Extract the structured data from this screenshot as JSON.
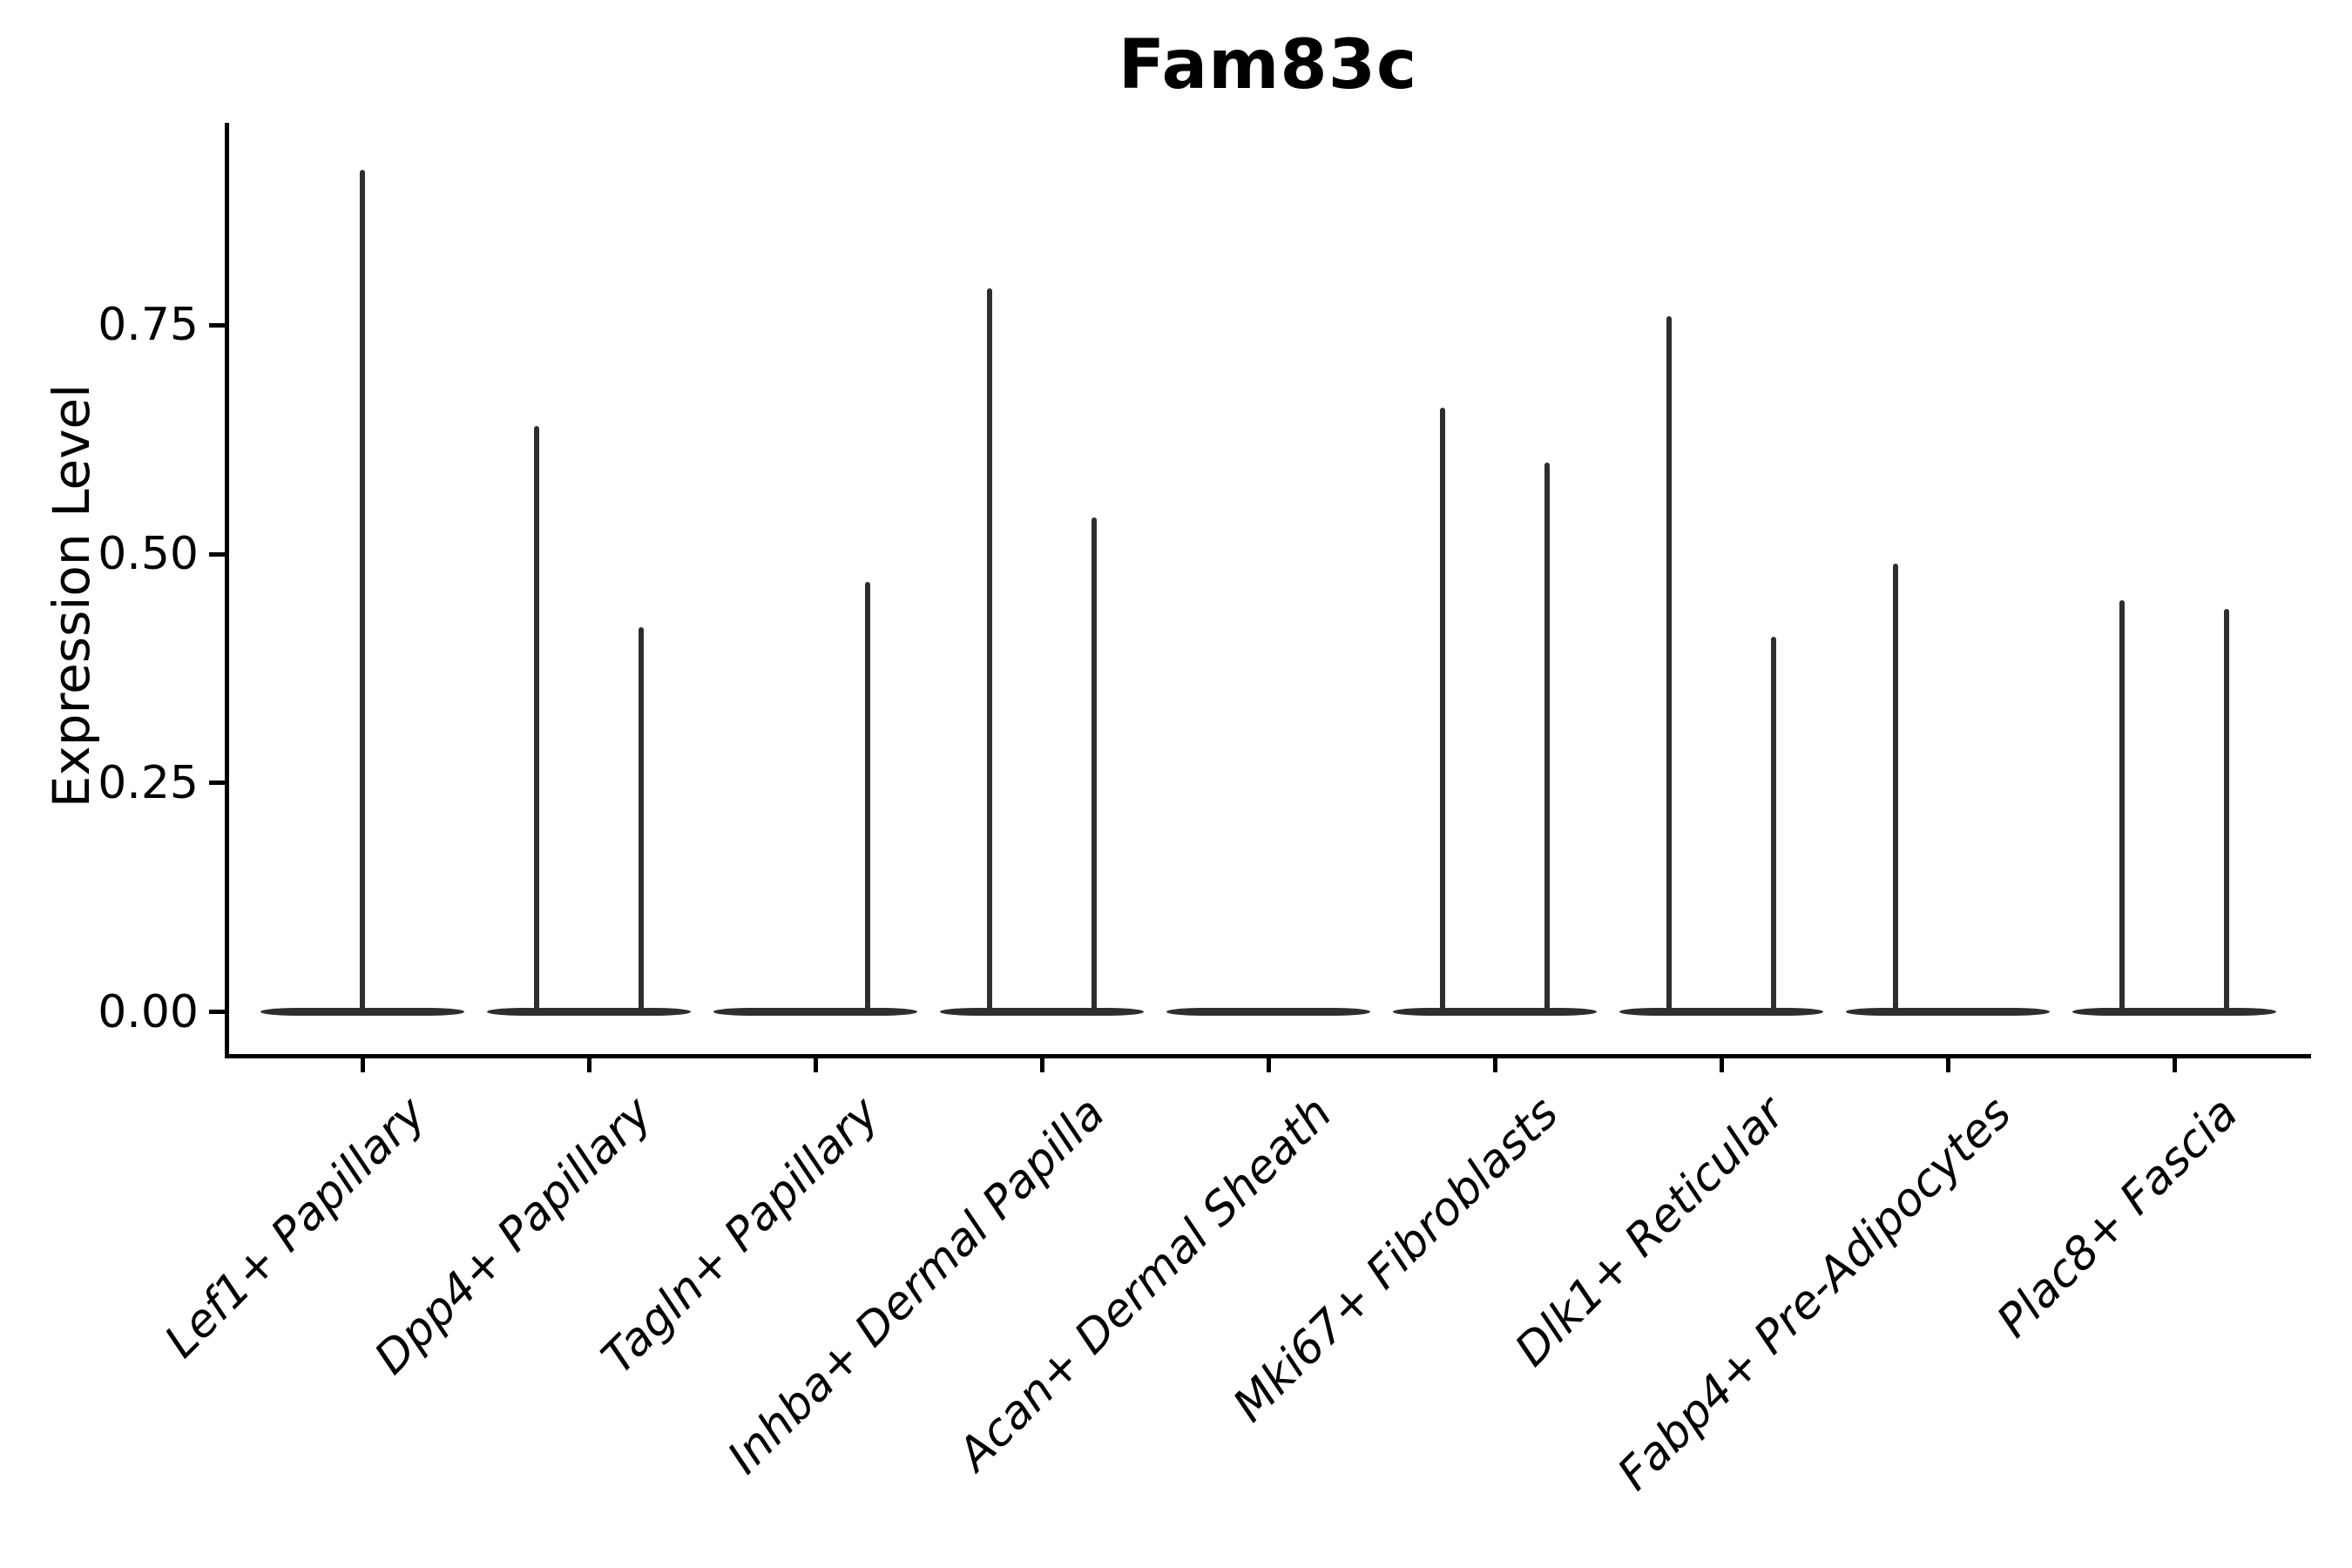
{
  "chart_data": {
    "type": "violin",
    "title": "Fam83c",
    "ylabel": "Expression Level",
    "xlabel": "",
    "grid": false,
    "legend": "none",
    "ylim": [
      -0.046,
      0.971
    ],
    "ytick_values": [
      0.0,
      0.25,
      0.5,
      0.75
    ],
    "ytick_labels": [
      "0.00",
      "0.25",
      "0.50",
      "0.75"
    ],
    "categories": [
      "Lef1+ Papillary",
      "Dpp4+ Papillary",
      "Tagln+ Papillary",
      "Inhba+ Dermal Papilla",
      "Acan+ Dermal Sheath",
      "Mki67+ Fibroblasts",
      "Dlk1+ Reticular",
      "Fabp4+ Pre-Adipocytes",
      "Plac8+ Fascia"
    ],
    "violins": [
      {
        "category": "Lef1+ Papillary",
        "baseline": 0,
        "spikes": [
          {
            "position": "center",
            "max": 0.92
          }
        ]
      },
      {
        "category": "Dpp4+ Papillary",
        "baseline": 0,
        "spikes": [
          {
            "position": "left",
            "max": 0.64
          },
          {
            "position": "right",
            "max": 0.42
          }
        ]
      },
      {
        "category": "Tagln+ Papillary",
        "baseline": 0,
        "spikes": [
          {
            "position": "right",
            "max": 0.47
          }
        ]
      },
      {
        "category": "Inhba+ Dermal Papilla",
        "baseline": 0,
        "spikes": [
          {
            "position": "left",
            "max": 0.79
          },
          {
            "position": "right",
            "max": 0.54
          }
        ]
      },
      {
        "category": "Acan+ Dermal Sheath",
        "baseline": 0,
        "spikes": []
      },
      {
        "category": "Mki67+ Fibroblasts",
        "baseline": 0,
        "spikes": [
          {
            "position": "left",
            "max": 0.66
          },
          {
            "position": "right",
            "max": 0.6
          }
        ]
      },
      {
        "category": "Dlk1+ Reticular",
        "baseline": 0,
        "spikes": [
          {
            "position": "left",
            "max": 0.76
          },
          {
            "position": "right",
            "max": 0.41
          }
        ]
      },
      {
        "category": "Fabp4+ Pre-Adipocytes",
        "baseline": 0,
        "spikes": [
          {
            "position": "left",
            "max": 0.49
          }
        ]
      },
      {
        "category": "Plac8+ Fascia",
        "baseline": 0,
        "spikes": [
          {
            "position": "left",
            "max": 0.45
          },
          {
            "position": "right",
            "max": 0.44
          }
        ]
      }
    ],
    "colors": {
      "stroke": "#2e2e2e",
      "axis": "#000000",
      "background": "#ffffff"
    }
  }
}
